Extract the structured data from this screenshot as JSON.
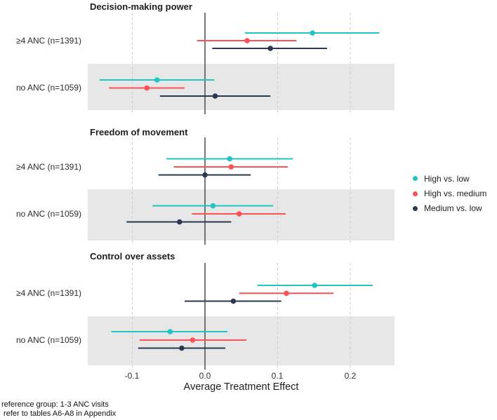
{
  "figure": {
    "footnote1": "reference group: 1-3 ANC visits",
    "footnote2": " refer to tables A6-A8 in Appendix"
  },
  "legend": {
    "items": [
      {
        "label": "High vs. low",
        "color": "#22c3c3"
      },
      {
        "label": "High vs. medium",
        "color": "#fb5257"
      },
      {
        "label": "Medium vs. low",
        "color": "#2a3950"
      }
    ]
  },
  "colors": {
    "band": "#e7e7e7",
    "gridline": "#cfcfcf",
    "zero_line": "#404040",
    "tick": "#c9c9c9"
  },
  "chart_data": {
    "type": "scatter",
    "subtype": "forest-plot-3-facets",
    "xlabel": "Average Treatment Effect",
    "x_ticks": [
      -0.1,
      0.0,
      0.1,
      0.2
    ],
    "x_tick_labels": [
      "-0.1",
      "0.0",
      "0.1",
      "0.2"
    ],
    "xlim": [
      -0.161,
      0.261
    ],
    "grid": "dashed-vertical-at-ticks, solid line at 0",
    "legend_position": "right-middle",
    "series": [
      {
        "name": "High vs. low",
        "color": "#22c3c3"
      },
      {
        "name": "High vs. medium",
        "color": "#fb5257"
      },
      {
        "name": "Medium vs. low",
        "color": "#2a3950"
      }
    ],
    "panels": [
      {
        "title": "Decision-making power",
        "rows": [
          {
            "group": "≥4 ANC (n=1391)",
            "shaded": false,
            "estimates": [
              {
                "series": "High vs. low",
                "est": 0.148,
                "lo": 0.055,
                "hi": 0.24
              },
              {
                "series": "High vs. medium",
                "est": 0.058,
                "lo": -0.011,
                "hi": 0.126
              },
              {
                "series": "Medium vs. low",
                "est": 0.09,
                "lo": 0.01,
                "hi": 0.168
              }
            ]
          },
          {
            "group": "no ANC (n=1059)",
            "shaded": true,
            "estimates": [
              {
                "series": "High vs. low",
                "est": -0.066,
                "lo": -0.145,
                "hi": 0.013
              },
              {
                "series": "High vs. medium",
                "est": -0.08,
                "lo": -0.132,
                "hi": -0.028
              },
              {
                "series": "Medium vs. low",
                "est": 0.014,
                "lo": -0.062,
                "hi": 0.09
              }
            ]
          }
        ]
      },
      {
        "title": "Freedom of movement",
        "rows": [
          {
            "group": "≥4 ANC (n=1391)",
            "shaded": false,
            "estimates": [
              {
                "series": "High vs. low",
                "est": 0.034,
                "lo": -0.053,
                "hi": 0.121
              },
              {
                "series": "High vs. medium",
                "est": 0.036,
                "lo": -0.043,
                "hi": 0.114
              },
              {
                "series": "Medium vs. low",
                "est": 0.0,
                "lo": -0.064,
                "hi": 0.063
              }
            ]
          },
          {
            "group": "no ANC (n=1059)",
            "shaded": true,
            "estimates": [
              {
                "series": "High vs. low",
                "est": 0.011,
                "lo": -0.072,
                "hi": 0.094
              },
              {
                "series": "High vs. medium",
                "est": 0.047,
                "lo": -0.018,
                "hi": 0.111
              },
              {
                "series": "Medium vs. low",
                "est": -0.035,
                "lo": -0.108,
                "hi": 0.036
              }
            ]
          }
        ]
      },
      {
        "title": "Control over assets",
        "rows": [
          {
            "group": "≥4 ANC (n=1391)",
            "shaded": false,
            "estimates": [
              {
                "series": "High vs. low",
                "est": 0.151,
                "lo": 0.072,
                "hi": 0.231
              },
              {
                "series": "High vs. medium",
                "est": 0.112,
                "lo": 0.047,
                "hi": 0.177
              },
              {
                "series": "Medium vs. low",
                "est": 0.039,
                "lo": -0.028,
                "hi": 0.105
              }
            ]
          },
          {
            "group": "no ANC (n=1059)",
            "shaded": true,
            "estimates": [
              {
                "series": "High vs. low",
                "est": -0.048,
                "lo": -0.129,
                "hi": 0.031
              },
              {
                "series": "High vs. medium",
                "est": -0.017,
                "lo": -0.09,
                "hi": 0.057
              },
              {
                "series": "Medium vs. low",
                "est": -0.032,
                "lo": -0.092,
                "hi": 0.028
              }
            ]
          }
        ]
      }
    ]
  }
}
